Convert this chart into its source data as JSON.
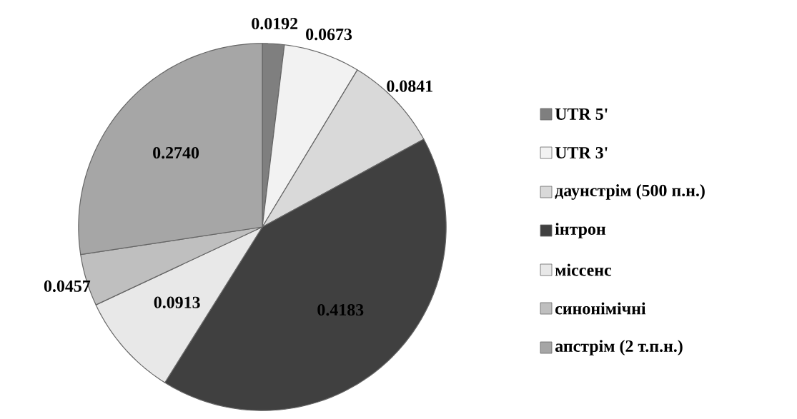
{
  "chart_data": {
    "type": "pie",
    "categories": [
      "UTR 5'",
      "UTR 3'",
      "даунстрім (500 п.н.)",
      "інтрон",
      "міссенс",
      "синонімічні",
      "апстрім (2 т.п.н.)"
    ],
    "values": [
      0.0192,
      0.0673,
      0.0841,
      0.4183,
      0.0913,
      0.0457,
      0.274
    ],
    "value_labels": [
      "0.0192",
      "0.0673",
      "0.0841",
      "0.4183",
      "0.0913",
      "0.0457",
      "0.2740"
    ],
    "colors": [
      "#7f7f7f",
      "#f2f2f2",
      "#d9d9d9",
      "#404040",
      "#e8e8e8",
      "#bfbfbf",
      "#a6a6a6"
    ],
    "legend": "right"
  }
}
